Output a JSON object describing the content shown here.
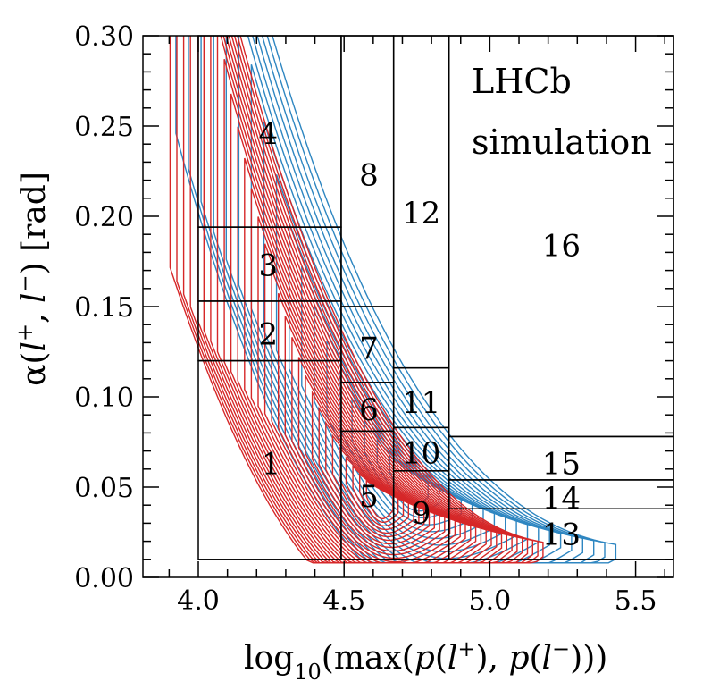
{
  "chart_data": {
    "type": "contour",
    "xlabel_parts": [
      "log",
      "10",
      "(max(",
      "p",
      "(",
      "l",
      "+",
      "), ",
      "p",
      "(",
      "l",
      "−",
      ")))"
    ],
    "ylabel_parts": [
      "α(",
      "l",
      "+",
      ", ",
      "l",
      "−",
      ") [rad]"
    ],
    "xlim": [
      3.81,
      5.63
    ],
    "ylim": [
      0.0,
      0.3
    ],
    "xticks": [
      {
        "value": 4.0,
        "label": "4.0"
      },
      {
        "value": 4.5,
        "label": "4.5"
      },
      {
        "value": 5.0,
        "label": "5.0"
      },
      {
        "value": 5.5,
        "label": "5.5"
      }
    ],
    "yticks": [
      {
        "value": 0.0,
        "label": "0.00"
      },
      {
        "value": 0.05,
        "label": "0.05"
      },
      {
        "value": 0.1,
        "label": "0.10"
      },
      {
        "value": 0.15,
        "label": "0.15"
      },
      {
        "value": 0.2,
        "label": "0.20"
      },
      {
        "value": 0.25,
        "label": "0.25"
      },
      {
        "value": 0.3,
        "label": "0.30"
      }
    ],
    "annotation": [
      "LHCb",
      "simulation"
    ],
    "series": [
      {
        "color": "#2e86c1",
        "center": [
          4.72,
          0.055
        ],
        "levels": 18
      },
      {
        "color": "#d62728",
        "center": [
          4.62,
          0.045
        ],
        "levels": 30
      }
    ],
    "bins": [
      {
        "id": "1",
        "x": [
          4.0,
          4.49
        ],
        "y": [
          0.01,
          0.12
        ],
        "label_pos": [
          4.25,
          0.063
        ]
      },
      {
        "id": "2",
        "x": [
          4.0,
          4.49
        ],
        "y": [
          0.12,
          0.153
        ],
        "label_pos": [
          4.24,
          0.135
        ]
      },
      {
        "id": "3",
        "x": [
          4.0,
          4.49
        ],
        "y": [
          0.153,
          0.194
        ],
        "label_pos": [
          4.24,
          0.173
        ]
      },
      {
        "id": "4",
        "x": [
          4.0,
          4.49
        ],
        "y": [
          0.194,
          0.3
        ],
        "label_pos": [
          4.24,
          0.246
        ]
      },
      {
        "id": "5",
        "x": [
          4.49,
          4.67
        ],
        "y": [
          0.01,
          0.081
        ],
        "label_pos": [
          4.585,
          0.045
        ]
      },
      {
        "id": "6",
        "x": [
          4.49,
          4.67
        ],
        "y": [
          0.081,
          0.108
        ],
        "label_pos": [
          4.585,
          0.093
        ]
      },
      {
        "id": "7",
        "x": [
          4.49,
          4.67
        ],
        "y": [
          0.108,
          0.15
        ],
        "label_pos": [
          4.585,
          0.127
        ]
      },
      {
        "id": "8",
        "x": [
          4.49,
          4.67
        ],
        "y": [
          0.15,
          0.3
        ],
        "label_pos": [
          4.585,
          0.223
        ]
      },
      {
        "id": "9",
        "x": [
          4.67,
          4.86
        ],
        "y": [
          0.01,
          0.059
        ],
        "label_pos": [
          4.765,
          0.036
        ]
      },
      {
        "id": "10",
        "x": [
          4.67,
          4.86
        ],
        "y": [
          0.059,
          0.083
        ],
        "label_pos": [
          4.765,
          0.069
        ]
      },
      {
        "id": "11",
        "x": [
          4.67,
          4.86
        ],
        "y": [
          0.083,
          0.116
        ],
        "label_pos": [
          4.765,
          0.097
        ]
      },
      {
        "id": "12",
        "x": [
          4.67,
          4.86
        ],
        "y": [
          0.116,
          0.3
        ],
        "label_pos": [
          4.765,
          0.202
        ]
      },
      {
        "id": "13",
        "x": [
          4.86,
          5.63
        ],
        "y": [
          0.01,
          0.038
        ],
        "label_pos": [
          5.245,
          0.024
        ]
      },
      {
        "id": "14",
        "x": [
          4.86,
          5.63
        ],
        "y": [
          0.038,
          0.054
        ],
        "label_pos": [
          5.245,
          0.044
        ]
      },
      {
        "id": "15",
        "x": [
          4.86,
          5.63
        ],
        "y": [
          0.054,
          0.078
        ],
        "label_pos": [
          5.245,
          0.063
        ]
      },
      {
        "id": "16",
        "x": [
          4.86,
          5.63
        ],
        "y": [
          0.078,
          0.3
        ],
        "label_pos": [
          5.245,
          0.184
        ]
      }
    ]
  }
}
